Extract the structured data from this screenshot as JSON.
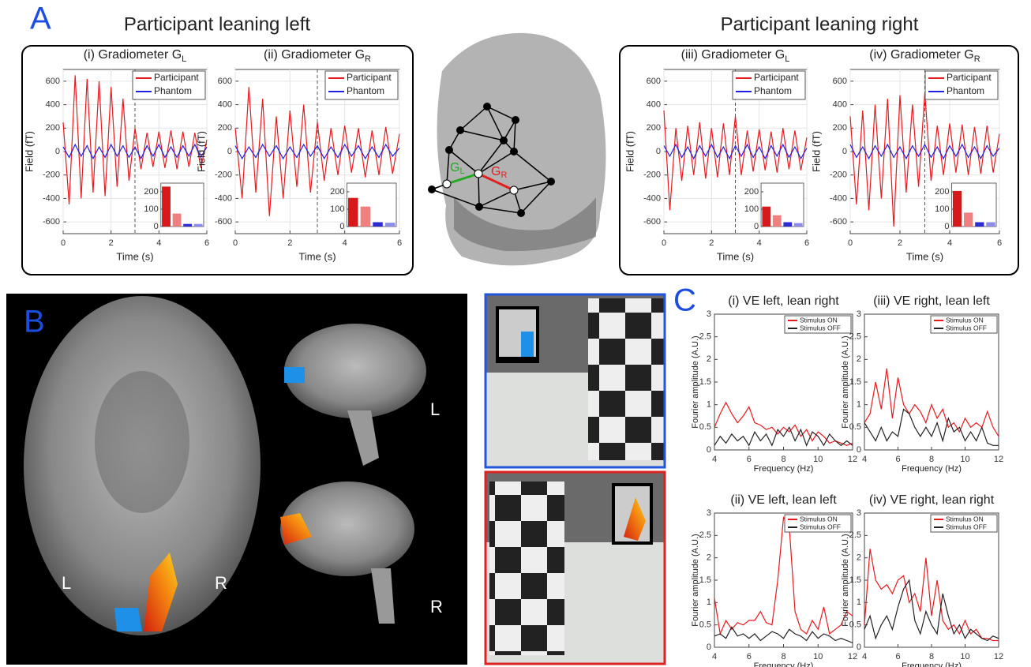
{
  "figure": {
    "panel_a": {
      "letter": "A",
      "left_title": "Participant leaning left",
      "right_title": "Participant leaning right"
    },
    "head": {
      "g_left": "G",
      "g_left_sub": "L",
      "g_right": "G",
      "g_right_sub": "R"
    },
    "panel_b": {
      "letter": "B",
      "axial_left": "L",
      "axial_right": "R",
      "sagittal_top": "L",
      "sagittal_bottom": "R"
    },
    "panel_c": {
      "letter": "C"
    }
  },
  "chart_data": [
    {
      "type": "line",
      "title": "(i) Gradiometer G",
      "title_sub": "L",
      "x_label": "Time (s)",
      "y_label": "Field (fT)",
      "x": [
        0,
        0.25,
        0.5,
        0.75,
        1,
        1.25,
        1.5,
        1.75,
        2,
        2.25,
        2.5,
        2.75,
        3,
        3.25,
        3.5,
        3.75,
        4,
        4.25,
        4.5,
        4.75,
        5,
        5.25,
        5.5,
        5.75,
        6
      ],
      "series": [
        {
          "name": "Participant",
          "color": "#e8191f",
          "values": [
            250,
            -450,
            650,
            -400,
            620,
            -350,
            600,
            -380,
            550,
            -300,
            450,
            -250,
            200,
            -150,
            160,
            -130,
            170,
            -140,
            180,
            -150,
            170,
            -130,
            160,
            -140,
            100
          ]
        },
        {
          "name": "Phantom",
          "color": "#2020e0",
          "values": [
            40,
            -50,
            60,
            -40,
            50,
            -60,
            40,
            -50,
            60,
            -40,
            50,
            -50,
            40,
            -60,
            50,
            -40,
            60,
            -50,
            40,
            -50,
            50,
            -40,
            60,
            -50,
            40
          ]
        }
      ],
      "xlim": [
        0,
        6
      ],
      "xticks": [
        0,
        2,
        4,
        6
      ],
      "ylim": [
        -700,
        700
      ],
      "yticks": [
        -600,
        -400,
        -200,
        0,
        200,
        400,
        600
      ],
      "vline": 3,
      "grid": true,
      "inset": {
        "type": "bar",
        "categories": [
          null,
          null,
          null,
          null
        ],
        "values": [
          230,
          75,
          15,
          15
        ],
        "colors": [
          "#d7191c",
          "#f08080",
          "#2c2cd0",
          "#8c8ce8"
        ],
        "ylim": [
          0,
          250
        ],
        "yticks": [
          0,
          100,
          200
        ]
      }
    },
    {
      "type": "line",
      "title": "(ii) Gradiometer G",
      "title_sub": "R",
      "x_label": "Time (s)",
      "y_label": "Field (fT)",
      "x": [
        0,
        0.25,
        0.5,
        0.75,
        1,
        1.25,
        1.5,
        1.75,
        2,
        2.25,
        2.5,
        2.75,
        3,
        3.25,
        3.5,
        3.75,
        4,
        4.25,
        4.5,
        4.75,
        5,
        5.25,
        5.5,
        5.75,
        6
      ],
      "series": [
        {
          "name": "Participant",
          "color": "#e8191f",
          "values": [
            200,
            -400,
            550,
            -350,
            450,
            -550,
            300,
            -400,
            350,
            -300,
            400,
            -350,
            250,
            -250,
            200,
            -200,
            220,
            -180,
            200,
            -220,
            180,
            -200,
            210,
            -190,
            150
          ]
        },
        {
          "name": "Phantom",
          "color": "#2020e0",
          "values": [
            50,
            -60,
            40,
            -50,
            60,
            -40,
            50,
            -60,
            40,
            -50,
            60,
            -40,
            50,
            -60,
            40,
            -50,
            60,
            -40,
            50,
            -60,
            40,
            -50,
            60,
            -40,
            30
          ]
        }
      ],
      "xlim": [
        0,
        6
      ],
      "xticks": [
        0,
        2,
        4,
        6
      ],
      "ylim": [
        -700,
        700
      ],
      "yticks": [
        -600,
        -400,
        -200,
        0,
        200,
        400,
        600
      ],
      "vline": 3,
      "grid": true,
      "inset": {
        "type": "bar",
        "categories": [
          null,
          null,
          null,
          null
        ],
        "values": [
          165,
          115,
          25,
          22
        ],
        "colors": [
          "#d7191c",
          "#f08080",
          "#2c2cd0",
          "#8c8ce8"
        ],
        "ylim": [
          0,
          250
        ],
        "yticks": [
          0,
          100,
          200
        ]
      }
    },
    {
      "type": "line",
      "title": "(iii) Gradiometer G",
      "title_sub": "L",
      "x_label": "Time (s)",
      "y_label": "Field (fT)",
      "x": [
        0,
        0.25,
        0.5,
        0.75,
        1,
        1.25,
        1.5,
        1.75,
        2,
        2.25,
        2.5,
        2.75,
        3,
        3.25,
        3.5,
        3.75,
        4,
        4.25,
        4.5,
        4.75,
        5,
        5.25,
        5.5,
        5.75,
        6
      ],
      "series": [
        {
          "name": "Participant",
          "color": "#e8191f",
          "values": [
            350,
            -500,
            200,
            -250,
            220,
            -200,
            250,
            -230,
            200,
            -220,
            240,
            -200,
            300,
            -200,
            180,
            -170,
            190,
            -160,
            170,
            -180,
            200,
            -150,
            180,
            -160,
            120
          ]
        },
        {
          "name": "Phantom",
          "color": "#2020e0",
          "values": [
            50,
            -40,
            60,
            -50,
            40,
            -60,
            50,
            -40,
            60,
            -50,
            40,
            -60,
            50,
            -40,
            60,
            -50,
            40,
            -60,
            50,
            -40,
            60,
            -50,
            40,
            -60,
            30
          ]
        }
      ],
      "xlim": [
        0,
        6
      ],
      "xticks": [
        0,
        2,
        4,
        6
      ],
      "ylim": [
        -700,
        700
      ],
      "yticks": [
        -600,
        -400,
        -200,
        0,
        200,
        400,
        600
      ],
      "vline": 3,
      "grid": true,
      "inset": {
        "type": "bar",
        "categories": [
          null,
          null,
          null,
          null
        ],
        "values": [
          115,
          65,
          25,
          20
        ],
        "colors": [
          "#d7191c",
          "#f08080",
          "#2c2cd0",
          "#8c8ce8"
        ],
        "ylim": [
          0,
          250
        ],
        "yticks": [
          0,
          100,
          200
        ]
      }
    },
    {
      "type": "line",
      "title": "(iv) Gradiometer G",
      "title_sub": "R",
      "x_label": "Time (s)",
      "y_label": "Field (fT)",
      "x": [
        0,
        0.25,
        0.5,
        0.75,
        1,
        1.25,
        1.5,
        1.75,
        2,
        2.25,
        2.5,
        2.75,
        3,
        3.25,
        3.5,
        3.75,
        4,
        4.25,
        4.5,
        4.75,
        5,
        5.25,
        5.5,
        5.75,
        6
      ],
      "series": [
        {
          "name": "Participant",
          "color": "#e8191f",
          "values": [
            300,
            -450,
            350,
            -500,
            400,
            -400,
            450,
            -640,
            480,
            -350,
            400,
            -300,
            500,
            -250,
            220,
            -200,
            240,
            -180,
            230,
            -200,
            210,
            -190,
            220,
            -180,
            150
          ]
        },
        {
          "name": "Phantom",
          "color": "#2020e0",
          "values": [
            60,
            -50,
            40,
            -60,
            50,
            -40,
            60,
            -50,
            40,
            -60,
            50,
            -40,
            60,
            -50,
            40,
            -60,
            50,
            -40,
            60,
            -50,
            40,
            -60,
            50,
            -40,
            30
          ]
        }
      ],
      "xlim": [
        0,
        6
      ],
      "xticks": [
        0,
        2,
        4,
        6
      ],
      "ylim": [
        -700,
        700
      ],
      "yticks": [
        -600,
        -400,
        -200,
        0,
        200,
        400,
        600
      ],
      "vline": 3,
      "grid": true,
      "inset": {
        "type": "bar",
        "categories": [
          null,
          null,
          null,
          null
        ],
        "values": [
          205,
          80,
          25,
          25
        ],
        "colors": [
          "#d7191c",
          "#f08080",
          "#2c2cd0",
          "#8c8ce8"
        ],
        "ylim": [
          0,
          250
        ],
        "yticks": [
          0,
          100,
          200
        ]
      }
    },
    {
      "type": "line",
      "title": "(i) VE left, lean right",
      "x_label": "Frequency (Hz)",
      "y_label": "Fourier amplitude (A.U.)",
      "x": [
        4,
        4.333,
        4.667,
        5,
        5.333,
        5.667,
        6,
        6.333,
        6.667,
        7,
        7.333,
        7.667,
        8,
        8.333,
        8.667,
        9,
        9.333,
        9.667,
        10,
        10.333,
        10.667,
        11,
        11.333,
        11.667,
        12
      ],
      "series": [
        {
          "name": "Stimulus ON",
          "color": "#e8191f",
          "values": [
            0.5,
            0.8,
            1.05,
            0.8,
            0.6,
            0.75,
            0.95,
            0.6,
            0.55,
            0.45,
            0.5,
            0.35,
            0.5,
            0.4,
            0.55,
            0.3,
            0.45,
            0.2,
            0.4,
            0.3,
            0.15,
            0.2,
            0.15,
            0.1,
            0.15
          ]
        },
        {
          "name": "Stimulus OFF",
          "color": "#222222",
          "values": [
            0.1,
            0.3,
            0.15,
            0.35,
            0.2,
            0.3,
            0.1,
            0.4,
            0.2,
            0.35,
            0.1,
            0.45,
            0.3,
            0.5,
            0.2,
            0.45,
            0.1,
            0.4,
            0.3,
            0.1,
            0.35,
            0.2,
            0.1,
            0.2,
            0.1
          ]
        }
      ],
      "xlim": [
        4,
        12
      ],
      "xticks": [
        4,
        6,
        8,
        10,
        12
      ],
      "ylim": [
        0,
        3
      ],
      "yticks": [
        0,
        0.5,
        1,
        1.5,
        2,
        2.5,
        3
      ]
    },
    {
      "type": "line",
      "title": "(ii) VE left, lean left",
      "x_label": "Frequency (Hz)",
      "y_label": "Fourier amplitude (A.U.)",
      "x": [
        4,
        4.333,
        4.667,
        5,
        5.333,
        5.667,
        6,
        6.333,
        6.667,
        7,
        7.333,
        7.667,
        8,
        8.333,
        8.667,
        9,
        9.333,
        9.667,
        10,
        10.333,
        10.667,
        11,
        11.333,
        11.667,
        12
      ],
      "series": [
        {
          "name": "Stimulus ON",
          "color": "#e8191f",
          "values": [
            1.1,
            0.3,
            0.6,
            0.4,
            0.55,
            0.5,
            0.6,
            0.6,
            0.8,
            0.55,
            0.5,
            1.5,
            2.9,
            2.7,
            0.8,
            0.4,
            0.3,
            0.6,
            0.4,
            0.9,
            0.3,
            0.4,
            0.5,
            0.8,
            0.7
          ]
        },
        {
          "name": "Stimulus OFF",
          "color": "#222222",
          "values": [
            0.25,
            0.3,
            0.2,
            0.45,
            0.25,
            0.3,
            0.2,
            0.3,
            0.15,
            0.25,
            0.35,
            0.3,
            0.2,
            0.4,
            0.3,
            0.25,
            0.15,
            0.35,
            0.2,
            0.3,
            0.25,
            0.15,
            0.2,
            0.15,
            0.1
          ]
        }
      ],
      "xlim": [
        4,
        12
      ],
      "xticks": [
        4,
        6,
        8,
        10,
        12
      ],
      "ylim": [
        0,
        3
      ],
      "yticks": [
        0,
        0.5,
        1,
        1.5,
        2,
        2.5,
        3
      ]
    },
    {
      "type": "line",
      "title": "(iii) VE right, lean left",
      "x_label": "Frequency (Hz)",
      "y_label": "Fourier amplitude (A.U.)",
      "x": [
        4,
        4.333,
        4.667,
        5,
        5.333,
        5.667,
        6,
        6.333,
        6.667,
        7,
        7.333,
        7.667,
        8,
        8.333,
        8.667,
        9,
        9.333,
        9.667,
        10,
        10.333,
        10.667,
        11,
        11.333,
        11.667,
        12
      ],
      "series": [
        {
          "name": "Stimulus ON",
          "color": "#e8191f",
          "values": [
            0.6,
            0.8,
            1.5,
            0.9,
            1.8,
            0.7,
            1.6,
            1.0,
            0.8,
            1.0,
            0.85,
            0.6,
            1.0,
            0.7,
            0.9,
            0.5,
            0.6,
            0.4,
            0.7,
            0.5,
            0.6,
            0.5,
            0.85,
            0.5,
            0.3
          ]
        },
        {
          "name": "Stimulus OFF",
          "color": "#222222",
          "values": [
            0.6,
            0.4,
            0.2,
            0.5,
            0.2,
            0.4,
            0.3,
            0.9,
            0.8,
            0.5,
            0.3,
            0.5,
            0.3,
            0.6,
            0.2,
            0.7,
            0.4,
            0.5,
            0.2,
            0.4,
            0.2,
            0.5,
            0.15,
            0.1,
            0.1
          ]
        }
      ],
      "xlim": [
        4,
        12
      ],
      "xticks": [
        4,
        6,
        8,
        10,
        12
      ],
      "ylim": [
        0,
        3
      ],
      "yticks": [
        0,
        0.5,
        1,
        1.5,
        2,
        2.5,
        3
      ]
    },
    {
      "type": "line",
      "title": "(iv) VE right, lean right",
      "x_label": "Frequency (Hz)",
      "y_label": "Fourier amplitude (A.U.)",
      "x": [
        4,
        4.333,
        4.667,
        5,
        5.333,
        5.667,
        6,
        6.333,
        6.667,
        7,
        7.333,
        7.667,
        8,
        8.333,
        8.667,
        9,
        9.333,
        9.667,
        10,
        10.333,
        10.667,
        11,
        11.333,
        11.667,
        12
      ],
      "series": [
        {
          "name": "Stimulus ON",
          "color": "#e8191f",
          "values": [
            0.5,
            2.2,
            1.5,
            1.3,
            1.4,
            1.2,
            1.5,
            1.6,
            1.0,
            1.2,
            0.8,
            2.0,
            0.7,
            1.5,
            0.6,
            0.4,
            0.5,
            0.3,
            0.6,
            0.3,
            0.4,
            0.2,
            0.2,
            0.15,
            0.15
          ]
        },
        {
          "name": "Stimulus OFF",
          "color": "#222222",
          "values": [
            0.4,
            0.7,
            0.2,
            0.5,
            0.7,
            0.4,
            0.9,
            1.3,
            1.5,
            0.6,
            0.3,
            0.8,
            0.5,
            0.3,
            1.2,
            0.7,
            0.3,
            0.5,
            0.2,
            0.4,
            0.3,
            0.2,
            0.15,
            0.25,
            0.2
          ]
        }
      ],
      "xlim": [
        4,
        12
      ],
      "xticks": [
        4,
        6,
        8,
        10,
        12
      ],
      "ylim": [
        0,
        3
      ],
      "yticks": [
        0,
        0.5,
        1,
        1.5,
        2,
        2.5,
        3
      ]
    }
  ]
}
